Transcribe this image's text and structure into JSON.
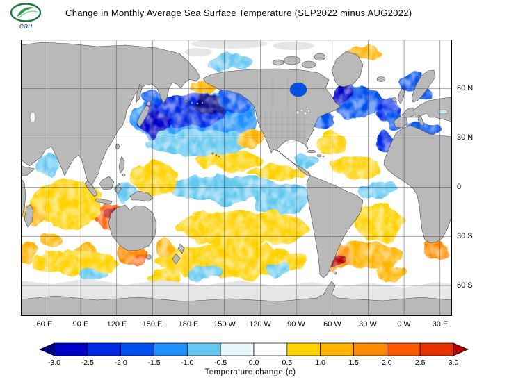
{
  "header": {
    "logo_text": "eau",
    "title": "Change in Monthly Average Sea Surface Temperature (SEP2022 minus AUG2022)"
  },
  "map": {
    "lat_labels": [
      "60 N",
      "30 N",
      "0",
      "30 S",
      "60 S"
    ],
    "lon_labels": [
      "60 E",
      "90 E",
      "120 E",
      "150 E",
      "180 E",
      "150 W",
      "120 W",
      "90 W",
      "60 W",
      "30 W",
      "0 W",
      "30 E"
    ],
    "land_color": "#b9b9b9",
    "ice_color": "#e6e6e6",
    "ocean_neutral_color": "#ffffff"
  },
  "chart_data": {
    "type": "heatmap",
    "title": "Change in Monthly Average Sea Surface Temperature (SEP2022 minus AUG2022)",
    "units": "deg C",
    "projection": "equirectangular, Pacific-centered",
    "lon_range_deg_east": [
      40,
      400
    ],
    "lat_range": [
      90,
      -78.6
    ],
    "grid_interval_deg": 30,
    "lat_ticks": [
      "60 N",
      "30 N",
      "0",
      "30 S",
      "60 S"
    ],
    "lon_ticks": [
      "60 E",
      "90 E",
      "120 E",
      "150 E",
      "180 E",
      "150 W",
      "120 W",
      "90 W",
      "60 W",
      "30 W",
      "0 W",
      "30 E"
    ],
    "colorbar": {
      "label": "Temperature change  (c)",
      "orientation": "horizontal",
      "arrow_ends": true,
      "thresholds": [
        -3,
        -2.5,
        -2,
        -1.5,
        -1,
        -0.5,
        0,
        0.5,
        1,
        1.5,
        2,
        2.5,
        3
      ],
      "tick_labels": [
        "-3.0",
        "-2.5",
        "-2.0",
        "-1.5",
        "-1.0",
        "-0.5",
        "0.0",
        "0.5",
        "1.0",
        "1.5",
        "2.0",
        "2.5",
        "3.0"
      ],
      "colors": [
        "#000082",
        "#0000c8",
        "#0028e6",
        "#0050f0",
        "#1e90ff",
        "#64c8f0",
        "#e8f8fd",
        "#ffffff",
        "#ffd200",
        "#ffb400",
        "#ff8c00",
        "#ff5a00",
        "#e63200",
        "#b40000"
      ]
    },
    "anomaly_regions": [
      {
        "name": "north-pacific-cooling",
        "lon": 185,
        "lat": 41,
        "rlon": 52,
        "rlat": 16,
        "value": -1.2
      },
      {
        "name": "north-pacific-inner",
        "lon": 178,
        "lat": 47,
        "rlon": 34,
        "rlat": 10,
        "value": -2.2
      },
      {
        "name": "kuroshio-core",
        "lon": 152,
        "lat": 39,
        "rlon": 13,
        "rlat": 8,
        "value": -2.7
      },
      {
        "name": "np-darkest-core",
        "lon": 197,
        "lat": 50,
        "rlon": 13,
        "rlat": 6,
        "value": -3.3
      },
      {
        "name": "gulf-of-alaska",
        "lon": 218,
        "lat": 52,
        "rlon": 13,
        "rlat": 8,
        "value": -1.6
      },
      {
        "name": "sea-of-okhotsk",
        "lon": 149,
        "lat": 55,
        "rlon": 8,
        "rlat": 5,
        "value": -2.0
      },
      {
        "name": "bering-warm-patch",
        "lon": 193,
        "lat": 60,
        "rlon": 12,
        "rlat": 4,
        "value": 1.2
      },
      {
        "name": "np-subtropic-fringe",
        "lon": 190,
        "lat": 27,
        "rlon": 46,
        "rlat": 8,
        "value": -0.8
      },
      {
        "name": "central-pacific-20n-warm",
        "lon": 213,
        "lat": 16,
        "rlon": 28,
        "rlat": 6,
        "value": 0.7
      },
      {
        "name": "california-warm",
        "lon": 232,
        "lat": 30,
        "rlon": 11,
        "rlat": 7,
        "value": 1.0
      },
      {
        "name": "equatorial-pacific-cool",
        "lon": 213,
        "lat": -1,
        "rlon": 52,
        "rlat": 8,
        "value": -0.7
      },
      {
        "name": "itcz-warm-band",
        "lon": 255,
        "lat": 9,
        "rlon": 24,
        "rlat": 4,
        "value": 0.7
      },
      {
        "name": "nino-region-cool",
        "lon": 258,
        "lat": -7,
        "rlon": 22,
        "rlat": 9,
        "value": -0.9
      },
      {
        "name": "west-pacific-warm-pool",
        "lon": 152,
        "lat": 6,
        "rlon": 20,
        "rlat": 10,
        "value": 0.8
      },
      {
        "name": "indonesia-seas-cool",
        "lon": 127,
        "lat": -3,
        "rlon": 10,
        "rlat": 5,
        "value": -0.6
      },
      {
        "name": "south-pacific-subtropic-warm",
        "lon": 225,
        "lat": -25,
        "rlon": 56,
        "rlat": 11,
        "value": 0.8
      },
      {
        "name": "south-pacific-40s-warm",
        "lon": 215,
        "lat": -45,
        "rlon": 62,
        "rlat": 10,
        "value": 0.7
      },
      {
        "name": "south-pacific-cool-1",
        "lon": 194,
        "lat": -52,
        "rlon": 13,
        "rlat": 5,
        "value": -0.7
      },
      {
        "name": "south-pacific-cool-2",
        "lon": 254,
        "lat": -50,
        "rlon": 11,
        "rlat": 5,
        "value": -0.7
      },
      {
        "name": "tasman-warm",
        "lon": 161,
        "lat": -37,
        "rlon": 9,
        "rlat": 6,
        "value": 1.0
      },
      {
        "name": "great-australian-bight-warm",
        "lon": 132,
        "lat": -40,
        "rlon": 12,
        "rlat": 6,
        "value": 1.7
      },
      {
        "name": "bight-core",
        "lon": 139,
        "lat": -44,
        "rlon": 6,
        "rlat": 3,
        "value": 2.3
      },
      {
        "name": "nw-australia-warm",
        "lon": 114,
        "lat": -18,
        "rlon": 13,
        "rlat": 9,
        "value": 2.2
      },
      {
        "name": "nw-australia-core",
        "lon": 116,
        "lat": -15,
        "rlon": 6,
        "rlat": 4,
        "value": 3.3
      },
      {
        "name": "indian-ocean-warm",
        "lon": 78,
        "lat": -10,
        "rlon": 30,
        "rlat": 15,
        "value": 0.8
      },
      {
        "name": "south-indian-warm-1",
        "lon": 65,
        "lat": -33,
        "rlon": 10,
        "rlat": 5,
        "value": 1.4
      },
      {
        "name": "south-indian-warm-2",
        "lon": 95,
        "lat": -39,
        "rlon": 9,
        "rlat": 4,
        "value": 1.3
      },
      {
        "name": "south-indian-band",
        "lon": 85,
        "lat": -46,
        "rlon": 36,
        "rlat": 7,
        "value": 0.8
      },
      {
        "name": "arabian-sea-cool",
        "lon": 63,
        "lat": 14,
        "rlon": 9,
        "rlat": 6,
        "value": -0.8
      },
      {
        "name": "west-indian-warm",
        "lon": 50,
        "lat": -17,
        "rlon": 9,
        "rlat": 8,
        "value": 1.3
      },
      {
        "name": "subpolar-atlantic-cool",
        "lon": 320,
        "lat": 52,
        "rlon": 23,
        "rlat": 10,
        "value": -1.8
      },
      {
        "name": "labrador-core",
        "lon": 308,
        "lat": 56,
        "rlon": 9,
        "rlat": 5,
        "value": -2.7
      },
      {
        "name": "ne-atlantic-core",
        "lon": 347,
        "lat": 47,
        "rlon": 10,
        "rlat": 8,
        "value": -2.4
      },
      {
        "name": "norwegian-sea-cool",
        "lon": 367,
        "lat": 64,
        "rlon": 10,
        "rlat": 6,
        "value": -1.6
      },
      {
        "name": "north-sea-cool",
        "lon": 377,
        "lat": 57,
        "rlon": 6,
        "rlat": 4,
        "value": -1.9
      },
      {
        "name": "iberia-biscay-cool",
        "lon": 352,
        "lat": 40,
        "rlon": 7,
        "rlat": 6,
        "value": -1.9
      },
      {
        "name": "mediterranean-cool",
        "lon": 377,
        "lat": 37,
        "rlon": 16,
        "rlat": 3,
        "value": -1.6
      },
      {
        "name": "canary-cool",
        "lon": 344,
        "lat": 27,
        "rlon": 8,
        "rlat": 6,
        "value": -2.2
      },
      {
        "name": "us-east-coast-cool",
        "lon": 293,
        "lat": 40,
        "rlon": 10,
        "rlat": 6,
        "value": -1.7
      },
      {
        "name": "sargasso-warm",
        "lon": 301,
        "lat": 27,
        "rlon": 13,
        "rlat": 6,
        "value": 0.8
      },
      {
        "name": "tropical-atlantic-warm",
        "lon": 320,
        "lat": 12,
        "rlon": 21,
        "rlat": 7,
        "value": 0.8
      },
      {
        "name": "caribbean-cool",
        "lon": 278,
        "lat": 16,
        "rlon": 11,
        "rlat": 4,
        "value": -0.6
      },
      {
        "name": "equatorial-atlantic-cool",
        "lon": 338,
        "lat": -2,
        "rlon": 15,
        "rlat": 5,
        "value": -0.7
      },
      {
        "name": "south-atlantic-warm",
        "lon": 340,
        "lat": -22,
        "rlon": 21,
        "rlat": 11,
        "value": 0.8
      },
      {
        "name": "south-atlantic-40s-warm",
        "lon": 330,
        "lat": -42,
        "rlon": 27,
        "rlat": 8,
        "value": 1.0
      },
      {
        "name": "argentina-shelf-warm",
        "lon": 303,
        "lat": -43,
        "rlon": 12,
        "rlat": 8,
        "value": 1.8
      },
      {
        "name": "argentina-core",
        "lon": 305,
        "lat": -45,
        "rlon": 5,
        "rlat": 4,
        "value": 3.3
      },
      {
        "name": "agulhas-warm",
        "lon": 385,
        "lat": -38,
        "rlon": 11,
        "rlat": 6,
        "value": 1.6
      },
      {
        "name": "sw-indian-warm",
        "lon": 44,
        "lat": -40,
        "rlon": 8,
        "rlat": 6,
        "value": 1.2
      },
      {
        "name": "arctic-cool-patch",
        "lon": 215,
        "lat": 76,
        "rlon": 20,
        "rlat": 5,
        "value": -1.0
      },
      {
        "name": "arctic-warm-patch",
        "lon": 330,
        "lat": 82,
        "rlon": 14,
        "rlat": 4,
        "value": 1.2
      },
      {
        "name": "southern-ocean-warm-1",
        "lon": 160,
        "lat": -55,
        "rlon": 14,
        "rlat": 5,
        "value": 0.9
      },
      {
        "name": "southern-ocean-cool-1",
        "lon": 100,
        "lat": -53,
        "rlon": 11,
        "rlat": 4,
        "value": -0.7
      },
      {
        "name": "southern-ocean-warm-2",
        "lon": 350,
        "lat": -52,
        "rlon": 13,
        "rlat": 5,
        "value": 1.0
      },
      {
        "name": "hudson-bay-cool",
        "lon": 272,
        "lat": 59,
        "rlon": 6,
        "rlat": 5,
        "value": -1.6
      }
    ]
  }
}
